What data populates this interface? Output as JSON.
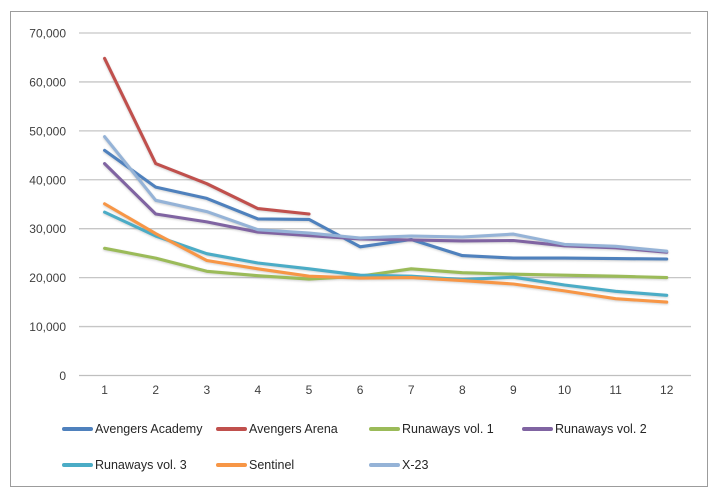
{
  "chart_data": {
    "type": "line",
    "title": "",
    "xlabel": "",
    "ylabel": "",
    "x": [
      1,
      2,
      3,
      4,
      5,
      6,
      7,
      8,
      9,
      10,
      11,
      12
    ],
    "xtick_labels": [
      "1",
      "2",
      "3",
      "4",
      "5",
      "6",
      "7",
      "8",
      "9",
      "10",
      "11",
      "12"
    ],
    "ytick_labels": [
      "0",
      "10,000",
      "20,000",
      "30,000",
      "40,000",
      "50,000",
      "60,000",
      "70,000"
    ],
    "ylim": [
      0,
      70000
    ],
    "ytick_step": 10000,
    "grid": true,
    "legend_position": "bottom",
    "series": [
      {
        "name": "Avengers Academy",
        "color": "#4F81BD",
        "values": [
          46000,
          38500,
          36200,
          32000,
          31900,
          26300,
          27800,
          24500,
          24000,
          24000,
          23900,
          23800
        ]
      },
      {
        "name": "Avengers Arena",
        "color": "#C0504D",
        "values": [
          64800,
          43300,
          39200,
          34100,
          33000
        ]
      },
      {
        "name": "Runaways vol. 1",
        "color": "#9BBB59",
        "values": [
          26000,
          24000,
          21300,
          20400,
          19700,
          20300,
          21800,
          21000,
          20700,
          20500,
          20300,
          20000
        ]
      },
      {
        "name": "Runaways vol. 2",
        "color": "#8064A2",
        "values": [
          43300,
          33000,
          31400,
          29300,
          28600,
          27900,
          27700,
          27500,
          27600,
          26500,
          26100,
          25200
        ]
      },
      {
        "name": "Runaways vol. 3",
        "color": "#4BACC6",
        "values": [
          33400,
          28500,
          24900,
          23000,
          21800,
          20500,
          20300,
          19600,
          20100,
          18500,
          17200,
          16400
        ]
      },
      {
        "name": "Sentinel",
        "color": "#F79646",
        "values": [
          35100,
          29000,
          23500,
          21800,
          20300,
          19900,
          20000,
          19400,
          18700,
          17300,
          15700,
          15000
        ]
      },
      {
        "name": "X-23",
        "color": "#95B3D7",
        "values": [
          48800,
          35800,
          33500,
          29800,
          29100,
          28100,
          28500,
          28300,
          28900,
          26800,
          26400,
          25400
        ]
      }
    ]
  },
  "colors": {
    "gridline": "#c6c6c6",
    "axis_line": "#bfbfbf",
    "tick_text": "#3f3f3f",
    "frame_border": "#9c9c9c",
    "background": "#ffffff"
  }
}
